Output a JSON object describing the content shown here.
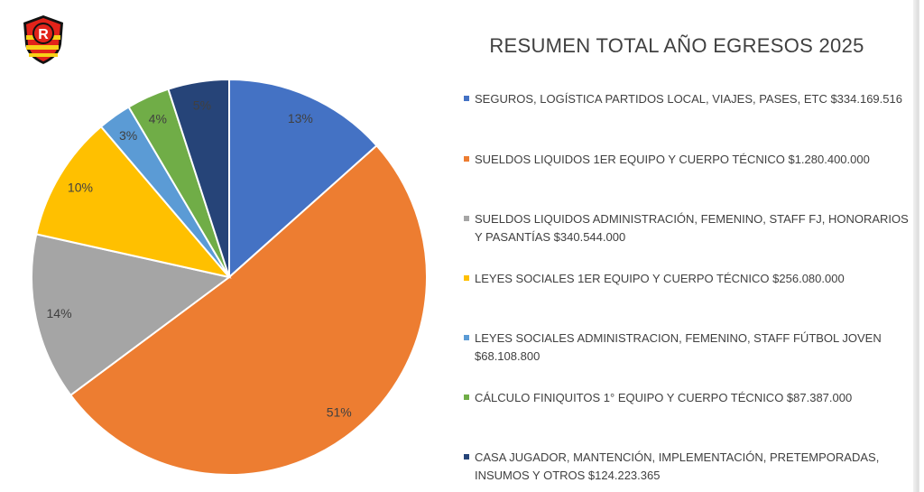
{
  "chart_data": {
    "type": "pie",
    "title": "RESUMEN TOTAL AÑO EGRESOS 2025",
    "legend_position": "right",
    "series": [
      {
        "label": "SEGUROS, LOGÍSTICA PARTIDOS LOCAL, VIAJES, PASES, ETC $334.169.516",
        "value": 334169516,
        "percent_label": "13%",
        "color": "#4472C4"
      },
      {
        "label": "SUELDOS LIQUIDOS 1ER EQUIPO Y CUERPO TÉCNICO $1.280.400.000",
        "value": 1280400000,
        "percent_label": "51%",
        "color": "#ED7D31"
      },
      {
        "label": "SUELDOS LIQUIDOS ADMINISTRACIÓN, FEMENINO, STAFF FJ, HONORARIOS Y PASANTÍAS $340.544.000",
        "value": 340544000,
        "percent_label": "14%",
        "color": "#A5A5A5"
      },
      {
        "label": "LEYES SOCIALES 1ER EQUIPO Y CUERPO TÉCNICO $256.080.000",
        "value": 256080000,
        "percent_label": "10%",
        "color": "#FFC000"
      },
      {
        "label": "LEYES SOCIALES ADMINISTRACION, FEMENINO, STAFF FÚTBOL JOVEN $68.108.800",
        "value": 68108800,
        "percent_label": "3%",
        "color": "#5B9BD5"
      },
      {
        "label": "CÁLCULO FINIQUITOS 1° EQUIPO Y CUERPO TÉCNICO $87.387.000",
        "value": 87387000,
        "percent_label": "4%",
        "color": "#70AD47"
      },
      {
        "label": "CASA JUGADOR, MANTENCIÓN, IMPLEMENTACIÓN, PRETEMPORADAS, INSUMOS Y OTROS $124.223.365",
        "value": 124223365,
        "percent_label": "5%",
        "color": "#264478"
      }
    ]
  },
  "logo": {
    "letter": "R",
    "colors": {
      "red": "#E2231A",
      "black": "#111111",
      "yellow": "#F7D117",
      "white": "#FFFFFF"
    }
  }
}
